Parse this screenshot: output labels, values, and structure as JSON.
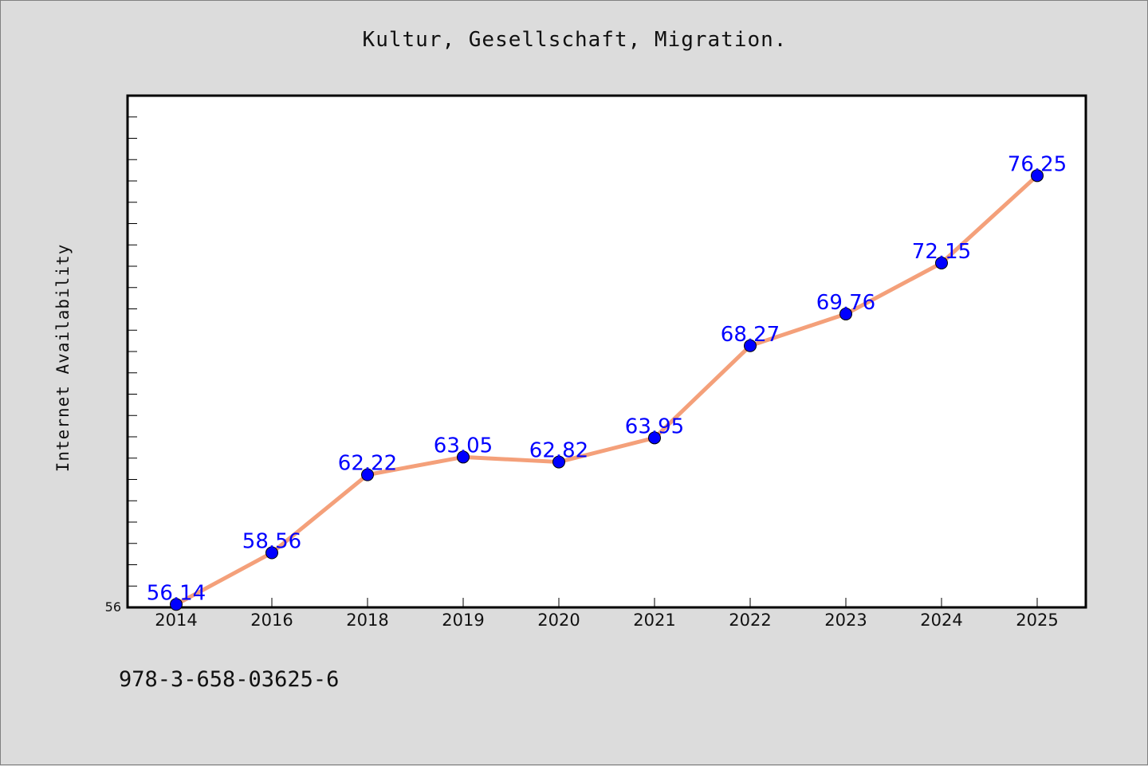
{
  "title": "Kultur, Gesellschaft, Migration.",
  "footer_text": "978-3-658-03625-6",
  "chart_data": {
    "type": "line",
    "title": "Kultur, Gesellschaft, Migration.",
    "xlabel": "",
    "ylabel": "Internet Availability",
    "categories": [
      "2014",
      "2016",
      "2018",
      "2019",
      "2020",
      "2021",
      "2022",
      "2023",
      "2024",
      "2025"
    ],
    "series": [
      {
        "values": [
          56.14,
          58.56,
          62.22,
          63.05,
          62.82,
          63.95,
          68.27,
          69.76,
          72.15,
          76.25
        ],
        "line_color": "#f4a07a",
        "marker_color": "#0000ff"
      }
    ],
    "data_labels": [
      "56.14",
      "58.56",
      "62.22",
      "63.05",
      "62.82",
      "63.95",
      "68.27",
      "69.76",
      "72.15",
      "76.25"
    ],
    "ylim": [
      56,
      80
    ],
    "ytick_label": "56",
    "grid": false,
    "legend": "none"
  }
}
